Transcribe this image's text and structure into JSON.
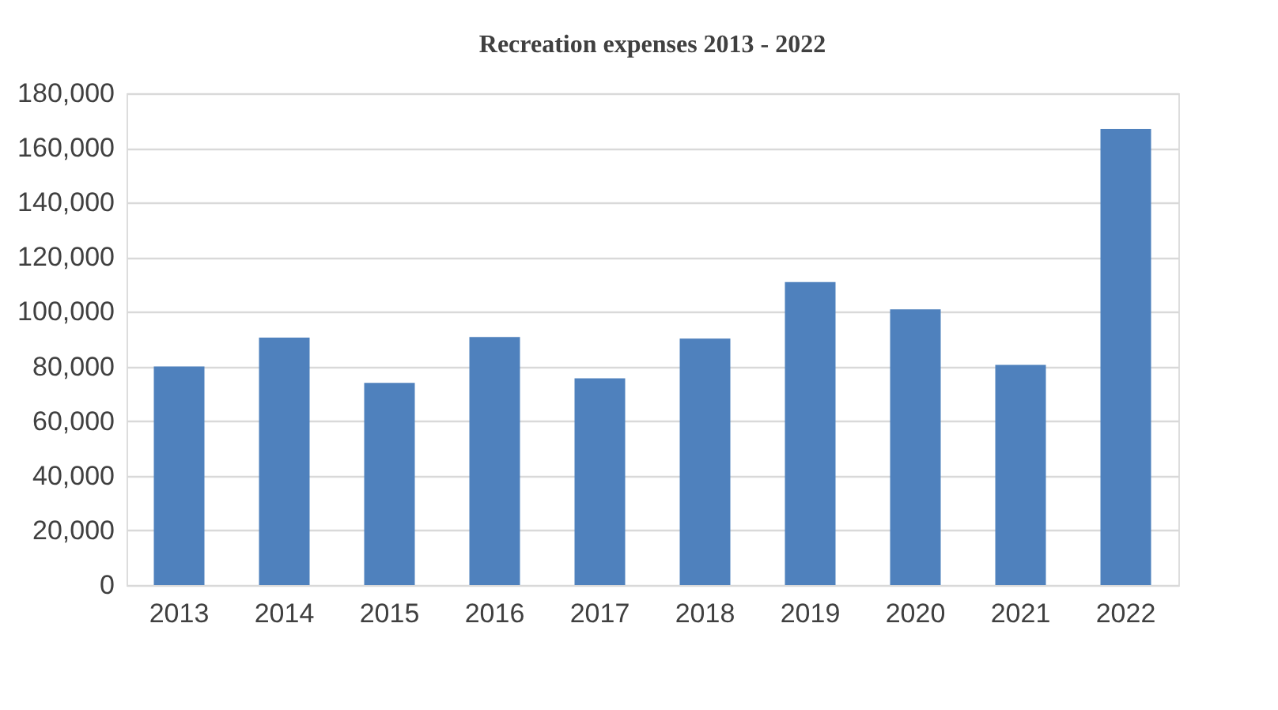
{
  "chart_data": {
    "type": "bar",
    "title": "Recreation expenses 2013 - 2022",
    "categories": [
      "2013",
      "2014",
      "2015",
      "2016",
      "2017",
      "2018",
      "2019",
      "2020",
      "2021",
      "2022"
    ],
    "values": [
      80000,
      90600,
      74000,
      90800,
      75700,
      90200,
      110900,
      100900,
      80600,
      167000
    ],
    "color": "#4f81bd",
    "ylim": [
      0,
      180000
    ],
    "yticks": [
      {
        "value": 0,
        "label": "0"
      },
      {
        "value": 20000,
        "label": "20,000"
      },
      {
        "value": 40000,
        "label": "40,000"
      },
      {
        "value": 60000,
        "label": "60,000"
      },
      {
        "value": 80000,
        "label": "80,000"
      },
      {
        "value": 100000,
        "label": "100,000"
      },
      {
        "value": 120000,
        "label": "120,000"
      },
      {
        "value": 140000,
        "label": "140,000"
      },
      {
        "value": 160000,
        "label": "160,000"
      },
      {
        "value": 180000,
        "label": "180,000"
      }
    ],
    "grid": "y"
  }
}
